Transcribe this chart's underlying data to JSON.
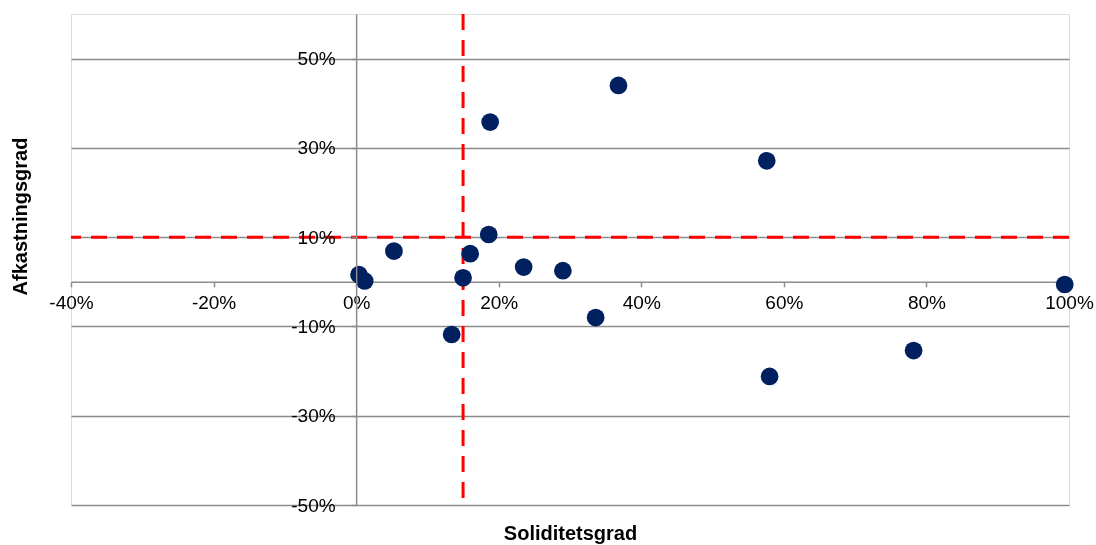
{
  "chart_data": {
    "type": "scatter",
    "xlabel": "Soliditetsgrad",
    "ylabel": "Afkastningsgrad",
    "x": [
      36.8,
      18.8,
      18.6,
      5.3,
      16.0,
      23.5,
      29.0,
      0.4,
      1.2,
      15.0,
      57.6,
      99.4,
      78.2,
      58.0,
      33.6,
      13.4
    ],
    "values": [
      44.0,
      35.8,
      10.6,
      6.9,
      6.3,
      3.3,
      2.5,
      1.6,
      0.2,
      0.9,
      27.1,
      -0.6,
      -15.4,
      -21.2,
      -8.0,
      -11.8
    ],
    "color": "#002060",
    "marker": "circle",
    "xlim": [
      -40,
      100
    ],
    "xticks": [
      {
        "value": -40,
        "label": "-40%"
      },
      {
        "value": -20,
        "label": "-20%"
      },
      {
        "value": 0,
        "label": "0%"
      },
      {
        "value": 20,
        "label": "20%"
      },
      {
        "value": 40,
        "label": "40%"
      },
      {
        "value": 60,
        "label": "60%"
      },
      {
        "value": 80,
        "label": "80%"
      },
      {
        "value": 100,
        "label": "100%"
      }
    ],
    "ylim": [
      -50,
      60
    ],
    "yticks": [
      {
        "value": -50,
        "label": "-50%"
      },
      {
        "value": -30,
        "label": "-30%"
      },
      {
        "value": -10,
        "label": "-10%"
      },
      {
        "value": 10,
        "label": "10%"
      },
      {
        "value": 30,
        "label": "30%"
      },
      {
        "value": 50,
        "label": "50%"
      }
    ],
    "grid": "y",
    "ref_lines": [
      {
        "axis": "x",
        "value": 15,
        "color": "#ff0000",
        "line_style": "dashed"
      },
      {
        "axis": "y",
        "value": 10,
        "color": "#ff0000",
        "line_style": "dashed"
      }
    ]
  }
}
